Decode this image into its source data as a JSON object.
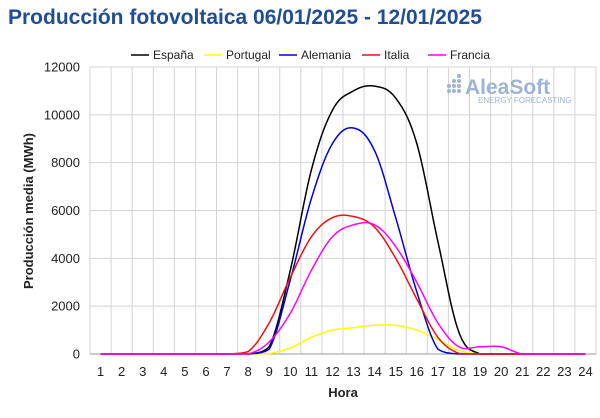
{
  "chart_data": {
    "type": "line",
    "title": "Producción fotovoltaica 06/01/2025 - 12/01/2025",
    "xlabel": "Hora",
    "ylabel": "Producción media (MWh)",
    "x": [
      1,
      2,
      3,
      4,
      5,
      6,
      7,
      8,
      9,
      10,
      11,
      12,
      13,
      14,
      15,
      16,
      17,
      18,
      19,
      20,
      21,
      22,
      23,
      24
    ],
    "ylim": [
      0,
      12000
    ],
    "yticks": [
      "0",
      "2000",
      "4000",
      "6000",
      "8000",
      "10000",
      "12000"
    ],
    "grid": true,
    "legend_position": "top",
    "series": [
      {
        "name": "España",
        "color": "#000000",
        "values": [
          0,
          0,
          0,
          0,
          0,
          0,
          0,
          0,
          300,
          3500,
          7700,
          10200,
          11000,
          11200,
          10700,
          8800,
          4700,
          900,
          0,
          0,
          0,
          0,
          0,
          0
        ]
      },
      {
        "name": "Portugal",
        "color": "#ffff00",
        "values": [
          0,
          0,
          0,
          0,
          0,
          0,
          0,
          0,
          20,
          250,
          700,
          1000,
          1100,
          1200,
          1200,
          1000,
          600,
          150,
          0,
          0,
          0,
          0,
          0,
          0
        ]
      },
      {
        "name": "Alemania",
        "color": "#0000e0",
        "values": [
          0,
          0,
          0,
          0,
          0,
          0,
          0,
          0,
          200,
          3100,
          6500,
          8800,
          9450,
          8500,
          5700,
          2600,
          200,
          0,
          0,
          0,
          0,
          0,
          0,
          0
        ]
      },
      {
        "name": "Italia",
        "color": "#ee1111",
        "values": [
          0,
          0,
          0,
          0,
          0,
          0,
          0,
          100,
          1300,
          3200,
          4900,
          5700,
          5750,
          5300,
          4000,
          2300,
          700,
          20,
          0,
          0,
          0,
          0,
          0,
          0
        ]
      },
      {
        "name": "Francia",
        "color": "#ff00ff",
        "values": [
          0,
          0,
          0,
          0,
          0,
          0,
          0,
          0,
          500,
          1700,
          3500,
          4900,
          5400,
          5400,
          4500,
          3000,
          1300,
          300,
          300,
          300,
          0,
          0,
          0,
          0
        ]
      }
    ]
  },
  "watermark": {
    "main": "AleaSoft",
    "sub": "ENERGY FORECASTING",
    "color": "#9fb3d6"
  }
}
